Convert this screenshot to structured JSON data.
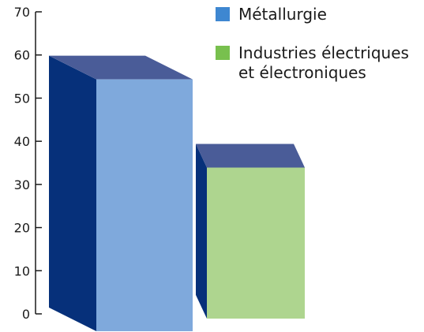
{
  "chart_data": {
    "type": "bar",
    "title": "",
    "xlabel": "",
    "ylabel": "",
    "ylim": [
      0,
      70
    ],
    "yticks": [
      0,
      10,
      20,
      30,
      40,
      50,
      60,
      70
    ],
    "categories": [
      "Métallurgie",
      "Industries électriques\net électroniques"
    ],
    "values": [
      58,
      35
    ],
    "colors": {
      "front": [
        "#7FA9DC",
        "#AED58F"
      ],
      "side": "#06307A",
      "top": "#4A5C98",
      "legend": [
        "#3E87D1",
        "#78C04E"
      ],
      "axis": "#1a1a1a"
    },
    "grid": false,
    "legend_position": "top-right",
    "style": "3d-bar"
  }
}
